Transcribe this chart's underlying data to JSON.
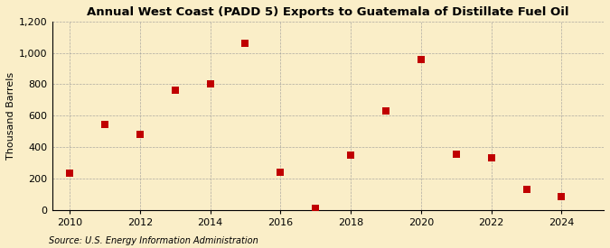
{
  "title": "Annual West Coast (PADD 5) Exports to Guatemala of Distillate Fuel Oil",
  "ylabel": "Thousand Barrels",
  "source": "Source: U.S. Energy Information Administration",
  "background_color": "#faeec8",
  "plot_bg_color": "#faeec8",
  "years": [
    2010,
    2011,
    2012,
    2013,
    2014,
    2015,
    2016,
    2017,
    2018,
    2019,
    2020,
    2021,
    2022,
    2023,
    2024
  ],
  "values": [
    232,
    546,
    482,
    762,
    800,
    1063,
    240,
    8,
    349,
    632,
    955,
    354,
    328,
    130,
    82
  ],
  "marker_color": "#c00000",
  "marker_size": 28,
  "xlim": [
    2009.5,
    2025.2
  ],
  "ylim": [
    0,
    1200
  ],
  "yticks": [
    0,
    200,
    400,
    600,
    800,
    1000,
    1200
  ],
  "xticks": [
    2010,
    2012,
    2014,
    2016,
    2018,
    2020,
    2022,
    2024
  ],
  "title_fontsize": 9.5,
  "label_fontsize": 8,
  "tick_fontsize": 8,
  "source_fontsize": 7
}
